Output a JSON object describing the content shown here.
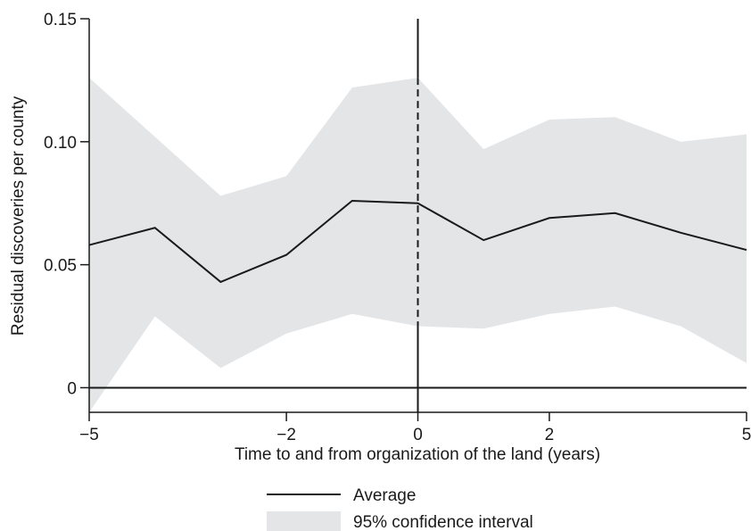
{
  "chart_data": {
    "type": "line",
    "title": "",
    "xlabel": "Time to and from organization of the land (years)",
    "ylabel": "Residual discoveries per county",
    "xlim": [
      -5,
      5
    ],
    "ylim": [
      -0.01,
      0.15
    ],
    "x_ticks": [
      {
        "value": -5,
        "label": "−5"
      },
      {
        "value": -2,
        "label": "−2"
      },
      {
        "value": 0,
        "label": "0"
      },
      {
        "value": 2,
        "label": "2"
      },
      {
        "value": 5,
        "label": "5"
      }
    ],
    "y_ticks": [
      {
        "value": 0,
        "label": "0"
      },
      {
        "value": 0.05,
        "label": "0.05"
      },
      {
        "value": 0.1,
        "label": "0.10"
      },
      {
        "value": 0.15,
        "label": "0.15"
      }
    ],
    "x": [
      -5,
      -4,
      -3,
      -2,
      -1,
      0,
      1,
      2,
      3,
      4,
      5
    ],
    "series": [
      {
        "name": "Average",
        "values": [
          0.058,
          0.065,
          0.043,
          0.054,
          0.076,
          0.075,
          0.06,
          0.069,
          0.071,
          0.063,
          0.056
        ]
      }
    ],
    "band": {
      "name": "95% confidence interval",
      "lower": [
        -0.01,
        0.029,
        0.008,
        0.022,
        0.03,
        0.025,
        0.024,
        0.03,
        0.033,
        0.025,
        0.01
      ],
      "upper": [
        0.126,
        0.102,
        0.078,
        0.086,
        0.122,
        0.126,
        0.097,
        0.109,
        0.11,
        0.1,
        0.103
      ]
    },
    "reference_lines": {
      "horizontal_at": 0,
      "vertical_at": 0
    },
    "legend_position": "bottom-center",
    "grid": false,
    "colors": {
      "line": "#1a1a1a",
      "band": "#e4e5e7",
      "axis": "#1a1a1a"
    }
  }
}
